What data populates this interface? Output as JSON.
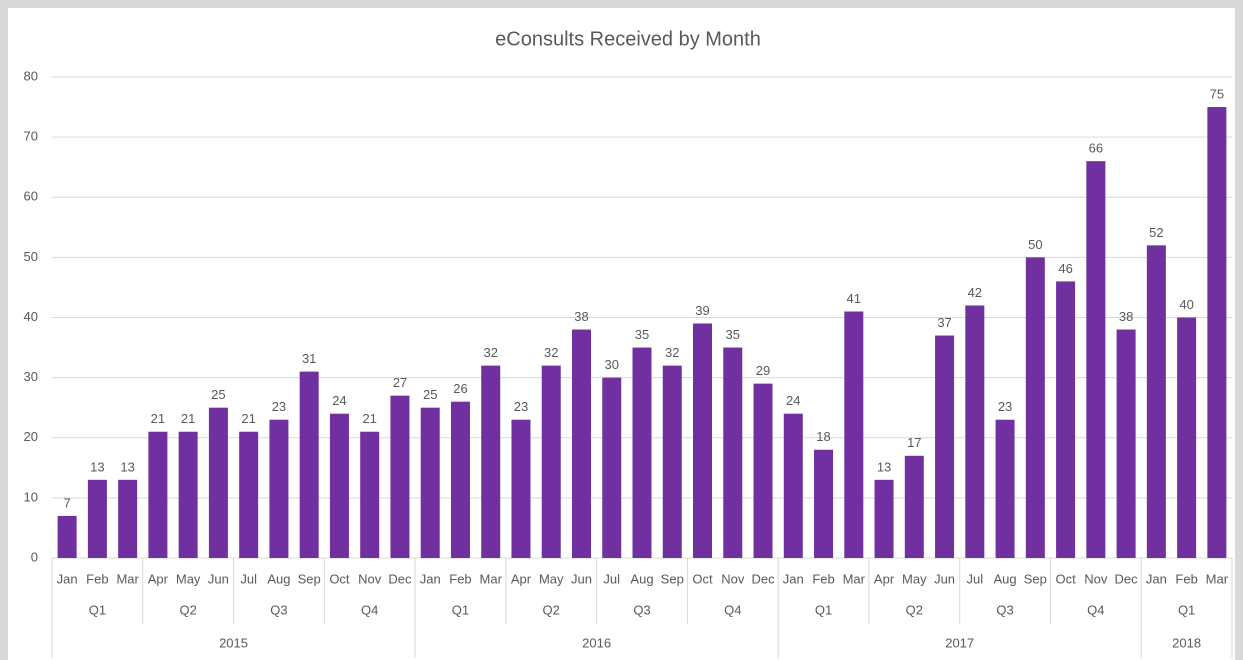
{
  "chart_data": {
    "type": "bar",
    "title": "eConsults Received by Month",
    "categories": [
      "Jan",
      "Feb",
      "Mar",
      "Apr",
      "May",
      "Jun",
      "Jul",
      "Aug",
      "Sep",
      "Oct",
      "Nov",
      "Dec",
      "Jan",
      "Feb",
      "Mar",
      "Apr",
      "May",
      "Jun",
      "Jul",
      "Aug",
      "Sep",
      "Oct",
      "Nov",
      "Dec",
      "Jan",
      "Feb",
      "Mar",
      "Apr",
      "May",
      "Jun",
      "Jul",
      "Aug",
      "Sep",
      "Oct",
      "Nov",
      "Dec",
      "Jan",
      "Feb",
      "Mar"
    ],
    "values": [
      7,
      13,
      13,
      21,
      21,
      25,
      21,
      23,
      31,
      24,
      21,
      27,
      25,
      26,
      32,
      23,
      32,
      38,
      30,
      35,
      32,
      39,
      35,
      29,
      24,
      18,
      41,
      13,
      17,
      37,
      42,
      23,
      50,
      46,
      66,
      38,
      52,
      40,
      75
    ],
    "groups": [
      {
        "label": "2015",
        "quarters": [
          "Q1",
          "Q2",
          "Q3",
          "Q4"
        ]
      },
      {
        "label": "2016",
        "quarters": [
          "Q1",
          "Q2",
          "Q3",
          "Q4"
        ]
      },
      {
        "label": "2017",
        "quarters": [
          "Q1",
          "Q2",
          "Q3",
          "Q4"
        ]
      },
      {
        "label": "2018",
        "quarters": [
          "Q1"
        ]
      }
    ],
    "color": "#7030a0",
    "ylim": [
      0,
      80
    ],
    "yticks": [
      0,
      10,
      20,
      30,
      40,
      50,
      60,
      70,
      80
    ],
    "grid": true
  }
}
